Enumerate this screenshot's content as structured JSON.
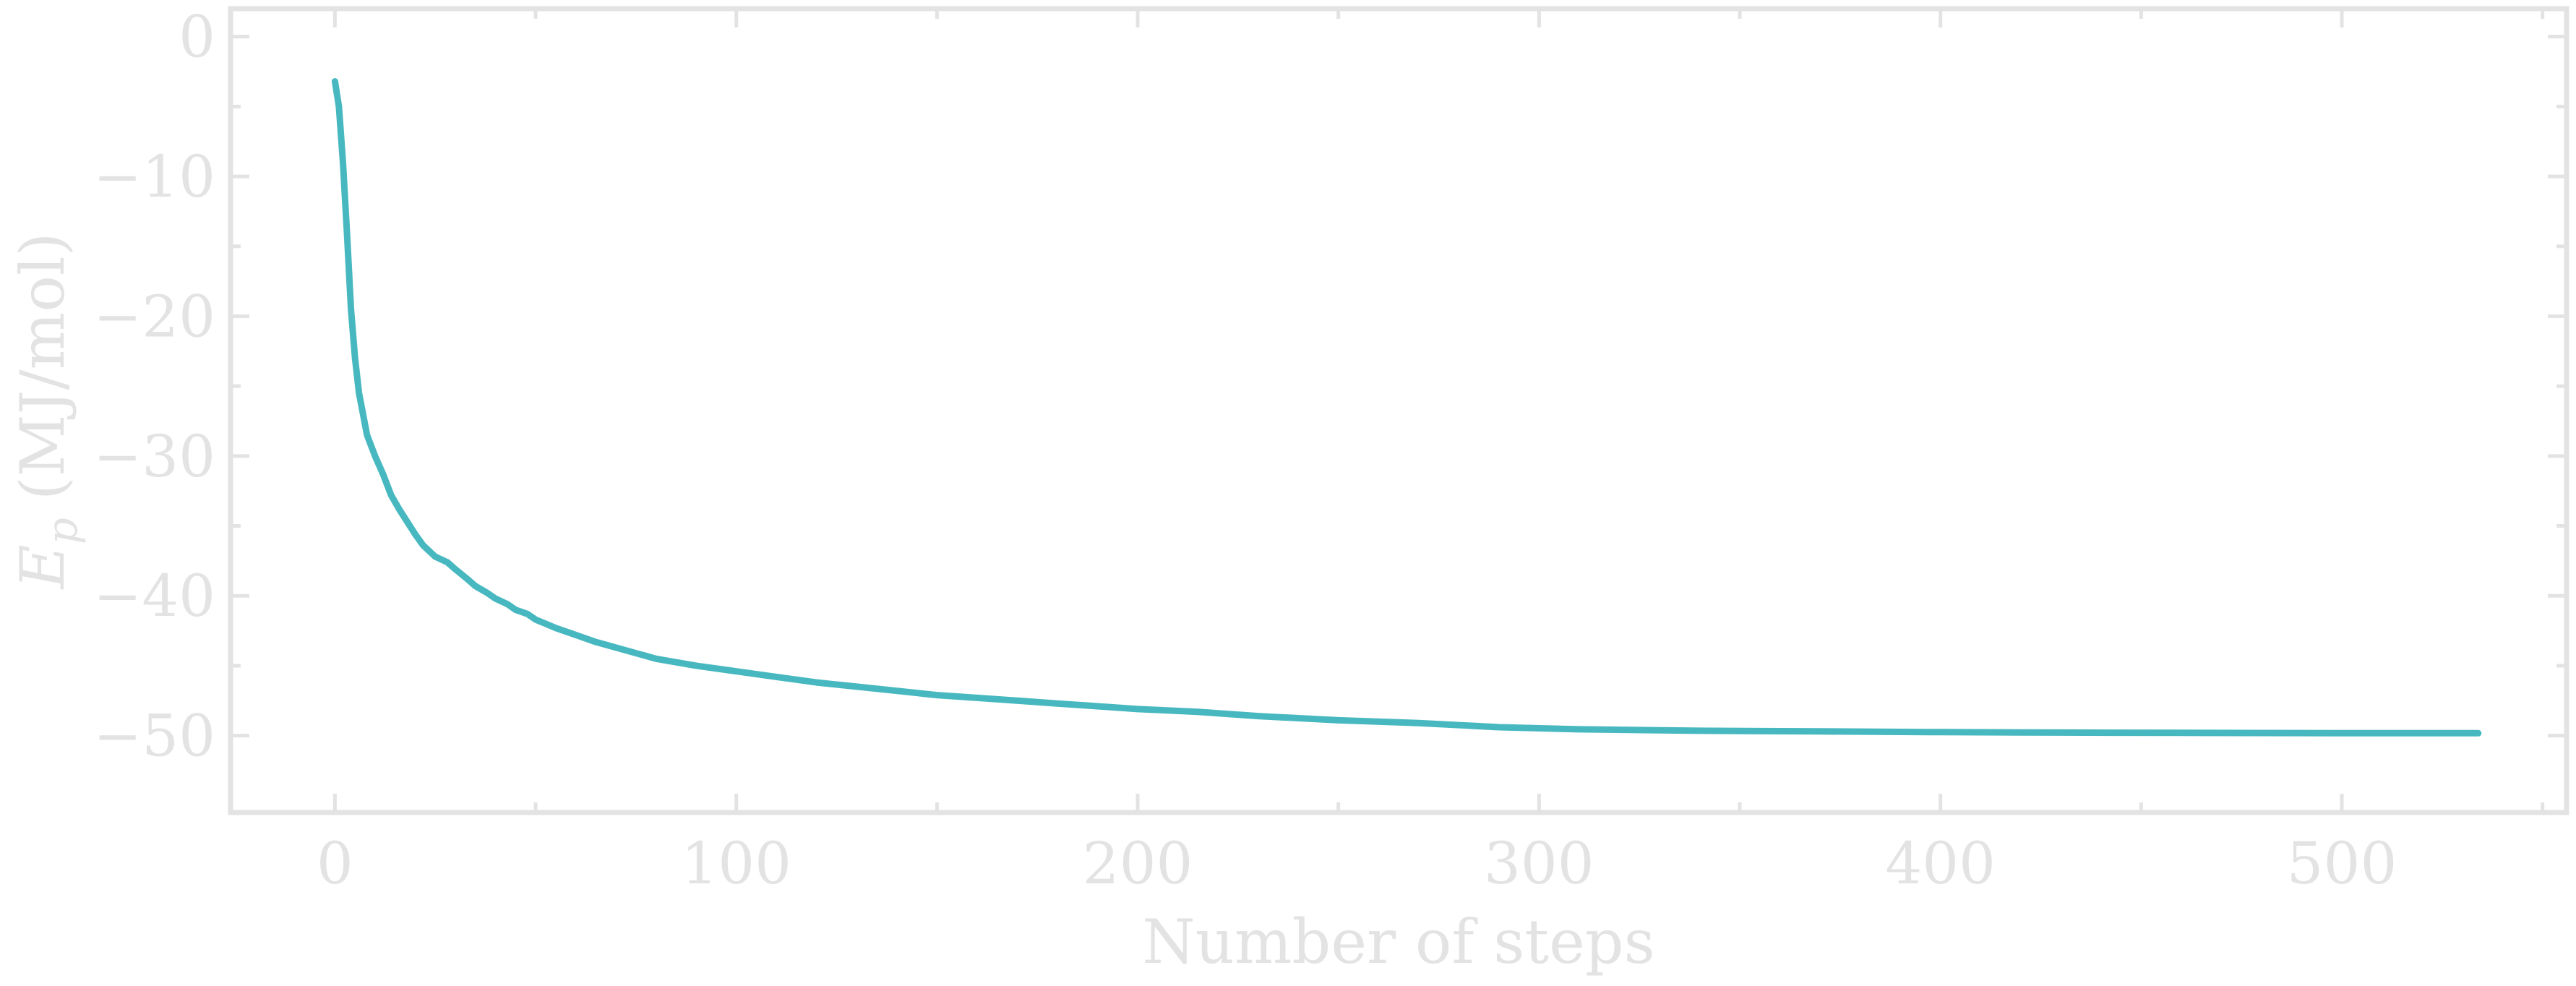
{
  "chart_data": {
    "type": "line",
    "xlabel": "Number of steps",
    "ylabel_main": "E",
    "ylabel_sub": "p",
    "ylabel_unit": "(MJ/mol)",
    "xlim": [
      -26,
      556
    ],
    "ylim": [
      -55.5,
      2
    ],
    "x_ticks": [
      {
        "value": 0,
        "label": "0"
      },
      {
        "value": 100,
        "label": "100"
      },
      {
        "value": 200,
        "label": "200"
      },
      {
        "value": 300,
        "label": "300"
      },
      {
        "value": 400,
        "label": "400"
      },
      {
        "value": 500,
        "label": "500"
      }
    ],
    "x_minor_ticks": [
      50,
      150,
      250,
      350,
      450,
      550
    ],
    "y_ticks": [
      {
        "value": 0,
        "label": "0"
      },
      {
        "value": -10,
        "label": "−10"
      },
      {
        "value": -20,
        "label": "−20"
      },
      {
        "value": -30,
        "label": "−30"
      },
      {
        "value": -40,
        "label": "−40"
      },
      {
        "value": -50,
        "label": "−50"
      }
    ],
    "y_minor_ticks": [
      -5,
      -15,
      -25,
      -35,
      -45
    ],
    "series": [
      {
        "color": "#48b8c0",
        "x": [
          0,
          1,
          2,
          3,
          4,
          5,
          6,
          8,
          10,
          12,
          14,
          16,
          18,
          20,
          22,
          25,
          28,
          30,
          33,
          35,
          38,
          40,
          43,
          45,
          48,
          50,
          55,
          60,
          65,
          70,
          80,
          90,
          100,
          110,
          120,
          130,
          140,
          150,
          160,
          170,
          180,
          190,
          200,
          215,
          230,
          250,
          270,
          290,
          310,
          340,
          370,
          400,
          430,
          460,
          500,
          534
        ],
        "y": [
          -3.2,
          -5,
          -9,
          -14,
          -19.5,
          -23,
          -25.5,
          -28.5,
          -30,
          -31.3,
          -32.8,
          -33.8,
          -34.7,
          -35.6,
          -36.4,
          -37.2,
          -37.6,
          -38.1,
          -38.8,
          -39.3,
          -39.8,
          -40.2,
          -40.6,
          -41,
          -41.3,
          -41.7,
          -42.3,
          -42.8,
          -43.3,
          -43.7,
          -44.5,
          -45,
          -45.4,
          -45.8,
          -46.2,
          -46.5,
          -46.8,
          -47.1,
          -47.3,
          -47.5,
          -47.7,
          -47.9,
          -48.1,
          -48.3,
          -48.6,
          -48.9,
          -49.1,
          -49.4,
          -49.55,
          -49.65,
          -49.7,
          -49.75,
          -49.78,
          -49.8,
          -49.82,
          -49.83
        ]
      }
    ]
  }
}
